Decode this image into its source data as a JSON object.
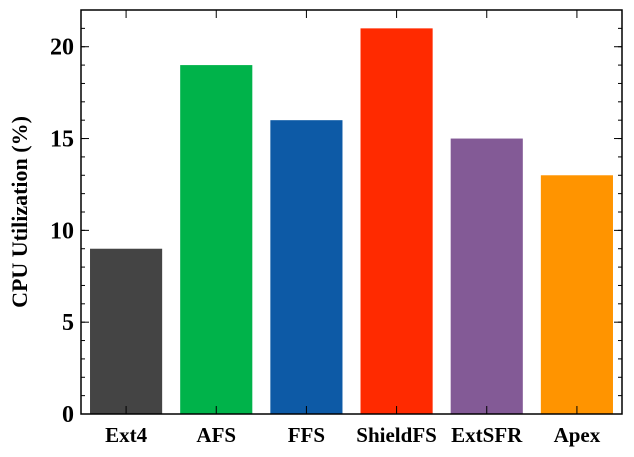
{
  "chart_data": {
    "type": "bar",
    "title": "",
    "xlabel": "",
    "ylabel": "CPU Utilization (%)",
    "categories": [
      "Ext4",
      "AFS",
      "FFS",
      "ShieldFS",
      "ExtSFR",
      "Apex"
    ],
    "values": [
      9,
      19,
      16,
      21,
      15,
      13
    ],
    "colors": [
      "#444444",
      "#00b34a",
      "#0d5aa6",
      "#ff2a00",
      "#835a96",
      "#ff9400"
    ],
    "ylim": [
      0,
      22
    ],
    "yticks": [
      0,
      5,
      10,
      15,
      20
    ],
    "ytick_labels": [
      "0",
      "5",
      "10",
      "15",
      "20"
    ],
    "grid": false,
    "legend": "none"
  }
}
